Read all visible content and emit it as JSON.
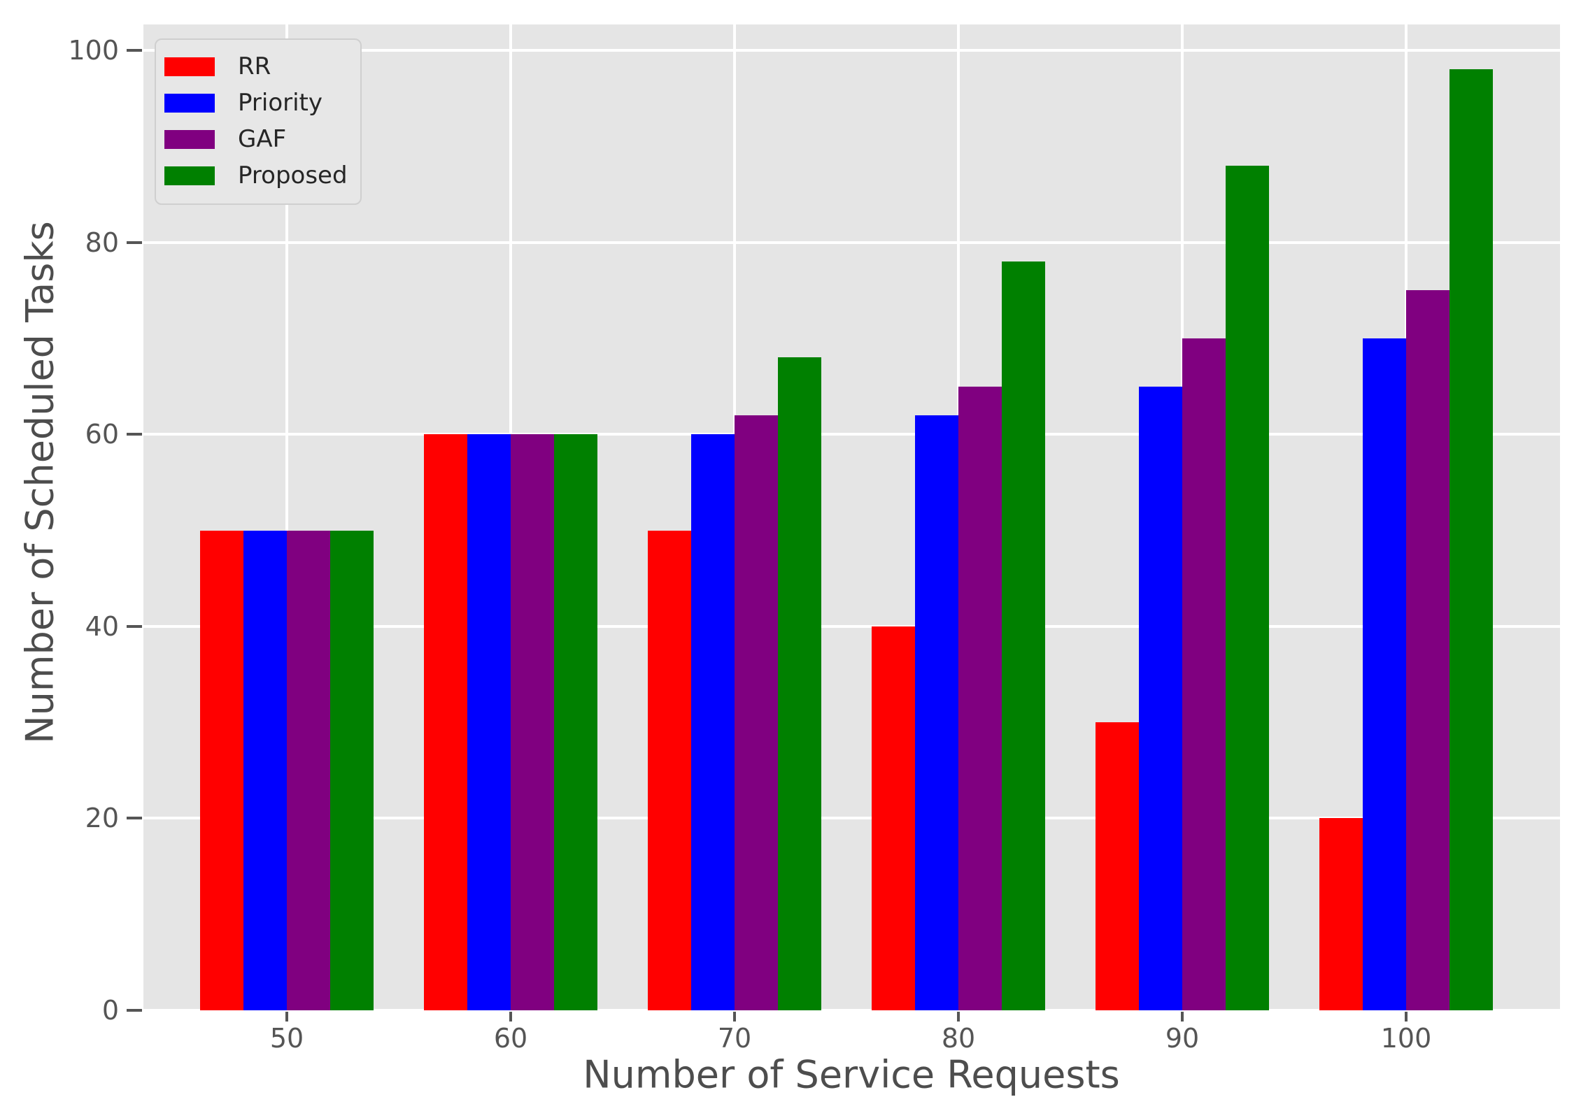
{
  "figure": {
    "background": "#ffffff",
    "plot_background": "#e5e5e5",
    "grid_color": "#ffffff",
    "tick_color": "#555555",
    "label_color": "#4d4d4d",
    "legend_text_color": "#262626"
  },
  "chart_data": {
    "type": "bar",
    "title": "",
    "xlabel": "Number of Service Requests",
    "ylabel": "Number of Scheduled Tasks",
    "categories": [
      "50",
      "60",
      "70",
      "80",
      "90",
      "100"
    ],
    "yticks": [
      "0",
      "20",
      "40",
      "60",
      "80",
      "100"
    ],
    "ylim": [
      0,
      100
    ],
    "grid": true,
    "legend_position": "upper-left",
    "series": [
      {
        "name": "RR",
        "color": "#ff0000",
        "values": [
          50,
          60,
          50,
          40,
          30,
          20
        ]
      },
      {
        "name": "Priority",
        "color": "#0000ff",
        "values": [
          50,
          60,
          60,
          62,
          65,
          70
        ]
      },
      {
        "name": "GAF",
        "color": "#800080",
        "values": [
          50,
          60,
          62,
          65,
          70,
          75
        ]
      },
      {
        "name": "Proposed",
        "color": "#008000",
        "values": [
          50,
          60,
          68,
          78,
          88,
          98
        ]
      }
    ]
  }
}
